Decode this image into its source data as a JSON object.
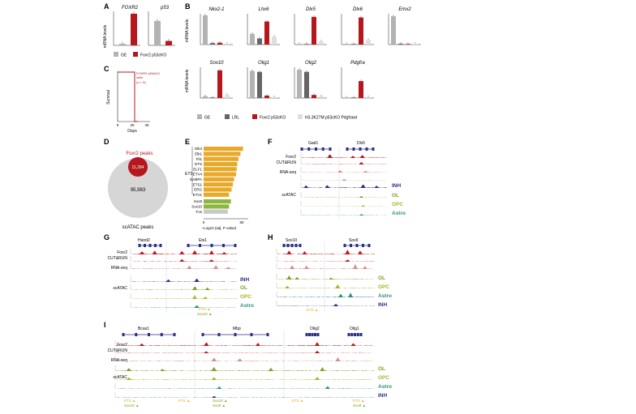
{
  "colors": {
    "ge": "#b3b3b3",
    "lrl": "#666666",
    "foxr2": "#b5171d",
    "h33": "#dedede",
    "inh": "#2b2f86",
    "ol": "#7aa224",
    "opc": "#a8b52a",
    "astro": "#2f8f7c",
    "ets": "#e8a92b",
    "sox": "#8db63f",
    "fos": "#c8c8c8",
    "cutrun": "#c0181e",
    "rnaseq": "#d98a8c"
  },
  "panelA": {
    "letter": "A",
    "ylabel": "mRNA levels",
    "genes": [
      "FOXR2",
      "p53"
    ],
    "legend": [
      "GE",
      "Foxr2 p53cKO"
    ]
  },
  "panelB": {
    "letter": "B",
    "ylabel": "mRNA levels",
    "row1": [
      "Nkx2-1",
      "Lhx6",
      "Dlx5",
      "Dlx6",
      "Emx2"
    ],
    "row2": [
      "Sox10",
      "Olig1",
      "Olig2",
      "Pdgfra"
    ],
    "legend": [
      "GE",
      "LRL",
      "Foxr2 p53cKO",
      "H3.3K27M p53cKO Pdgfrawt"
    ]
  },
  "panelC": {
    "letter": "C",
    "ylabel": "Survival",
    "xlabel": "Days",
    "annotation_line1": "FOXR2 p53cKO",
    "annotation_line2": "cells",
    "annotation_n": "(n = 5)",
    "xticks": [
      "0",
      "20",
      "40"
    ]
  },
  "panelD": {
    "letter": "D",
    "title": "Foxr2 peaks",
    "inner_value": "11,284",
    "outer_value": "95,983",
    "footer": "scATAC peaks"
  },
  "panelE": {
    "letter": "E",
    "group_label": "ETS",
    "xlabel": "–Log10 (adj. P value)",
    "xticks": [
      "0",
      "60"
    ],
    "factors": [
      {
        "name": "Elk4",
        "value": 62,
        "group": "ets"
      },
      {
        "name": "Elk1",
        "value": 58,
        "group": "ets"
      },
      {
        "name": "Fli1",
        "value": 55,
        "group": "ets"
      },
      {
        "name": "ETS",
        "value": 53,
        "group": "ets"
      },
      {
        "name": "ELF1",
        "value": 52,
        "group": "ets"
      },
      {
        "name": "ETV4",
        "value": 51,
        "group": "ets"
      },
      {
        "name": "GABPA",
        "value": 48,
        "group": "ets"
      },
      {
        "name": "ETS1",
        "value": 46,
        "group": "ets"
      },
      {
        "name": "ERG",
        "value": 44,
        "group": "ets"
      },
      {
        "name": "ETV1",
        "value": 40,
        "group": "ets"
      },
      {
        "name": "Sox9",
        "value": 43,
        "group": "sox"
      },
      {
        "name": "Sox10",
        "value": 40,
        "group": "sox"
      },
      {
        "name": "Fos",
        "value": 38,
        "group": "fos"
      }
    ]
  },
  "panelF": {
    "letter": "F",
    "genes": [
      "Gad1",
      "Dlx5"
    ],
    "track_labels": [
      "Foxr2",
      "CUT&RUN",
      "RNA-seq",
      "scATAC"
    ],
    "celltypes": [
      "INH",
      "OL",
      "OPC",
      "Astro"
    ]
  },
  "panelG": {
    "letter": "G",
    "genes": [
      "Hand2",
      "Ets1"
    ],
    "track_labels": [
      "Foxr2",
      "CUT&RUN",
      "RNA-seq",
      "scATAC"
    ],
    "celltypes": [
      "INH",
      "OL",
      "OPC",
      "Astro"
    ],
    "motifs": [
      "ETS ▲",
      "Sox10 ▲"
    ]
  },
  "panelH": {
    "letter": "H",
    "genes": [
      "Sox10",
      "Sox9"
    ],
    "celltypes": [
      "OL",
      "OPC",
      "Astro",
      "INH"
    ],
    "motifs": [
      "ETS ▲"
    ]
  },
  "panelI": {
    "letter": "I",
    "genes": [
      "Bcas1",
      "Mbp",
      "Olig2",
      "Olig1"
    ],
    "track_labels": [
      "Foxr2",
      "CUT&RUN",
      "RNA-seq",
      "scATAC"
    ],
    "celltypes": [
      "OL",
      "OPC",
      "Astro",
      "INH"
    ],
    "motifs": [
      "ETS ▲",
      "Sox10 ▲",
      "ETS ▲",
      "Sox10 ▲",
      "Sox9 ▲",
      "ETS ▲",
      "ETS ▲",
      "Sox9 ▲"
    ]
  }
}
